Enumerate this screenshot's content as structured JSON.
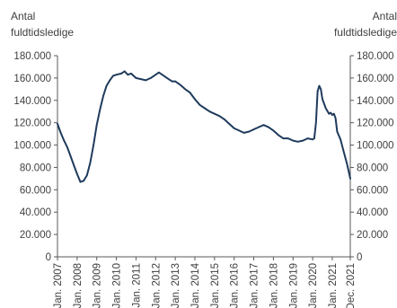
{
  "chart_data": {
    "type": "line",
    "title": "",
    "ylabel_left": [
      "Antal",
      "fuldtidsledige"
    ],
    "ylabel_right": [
      "Antal",
      "fuldtidsledige"
    ],
    "ylim": [
      0,
      180000
    ],
    "y_ticks": [
      {
        "value": 0,
        "label": "0"
      },
      {
        "value": 20000,
        "label": "20.000"
      },
      {
        "value": 40000,
        "label": "40.000"
      },
      {
        "value": 60000,
        "label": "60.000"
      },
      {
        "value": 80000,
        "label": "80.000"
      },
      {
        "value": 100000,
        "label": "100.000"
      },
      {
        "value": 120000,
        "label": "120.000"
      },
      {
        "value": 140000,
        "label": "140.000"
      },
      {
        "value": 160000,
        "label": "160.000"
      },
      {
        "value": 180000,
        "label": "180.000"
      }
    ],
    "x_ticks": [
      {
        "date": "2007-01",
        "label": "Jan. 2007"
      },
      {
        "date": "2008-01",
        "label": "Jan. 2008"
      },
      {
        "date": "2009-01",
        "label": "Jan. 2009"
      },
      {
        "date": "2010-01",
        "label": "Jan. 2010"
      },
      {
        "date": "2011-01",
        "label": "Jan. 2011"
      },
      {
        "date": "2012-01",
        "label": "Jan. 2012"
      },
      {
        "date": "2013-01",
        "label": "Jan. 2013"
      },
      {
        "date": "2014-01",
        "label": "Jan. 2014"
      },
      {
        "date": "2015-01",
        "label": "Jan. 2015"
      },
      {
        "date": "2016-01",
        "label": "Jan. 2016"
      },
      {
        "date": "2017-01",
        "label": "Jan. 2017"
      },
      {
        "date": "2018-01",
        "label": "Jan. 2018"
      },
      {
        "date": "2019-01",
        "label": "Jan. 2019"
      },
      {
        "date": "2020-01",
        "label": "Jan. 2020"
      },
      {
        "date": "2021-01",
        "label": "Jan. 2021"
      },
      {
        "date": "2021-12",
        "label": "Dec. 2021"
      }
    ],
    "series": [
      {
        "color": "#1f3b5c",
        "points": [
          {
            "x": "2007-01",
            "y": 119000
          },
          {
            "x": "2007-03",
            "y": 111000
          },
          {
            "x": "2007-05",
            "y": 104000
          },
          {
            "x": "2007-07",
            "y": 98000
          },
          {
            "x": "2007-09",
            "y": 90000
          },
          {
            "x": "2007-11",
            "y": 82000
          },
          {
            "x": "2008-01",
            "y": 74000
          },
          {
            "x": "2008-03",
            "y": 67000
          },
          {
            "x": "2008-05",
            "y": 68000
          },
          {
            "x": "2008-07",
            "y": 73000
          },
          {
            "x": "2008-09",
            "y": 84000
          },
          {
            "x": "2008-11",
            "y": 100000
          },
          {
            "x": "2009-01",
            "y": 118000
          },
          {
            "x": "2009-03",
            "y": 132000
          },
          {
            "x": "2009-05",
            "y": 144000
          },
          {
            "x": "2009-07",
            "y": 153000
          },
          {
            "x": "2009-09",
            "y": 158000
          },
          {
            "x": "2009-11",
            "y": 162000
          },
          {
            "x": "2010-01",
            "y": 163000
          },
          {
            "x": "2010-04",
            "y": 164000
          },
          {
            "x": "2010-06",
            "y": 166000
          },
          {
            "x": "2010-08",
            "y": 163000
          },
          {
            "x": "2010-10",
            "y": 164000
          },
          {
            "x": "2011-01",
            "y": 160000
          },
          {
            "x": "2011-04",
            "y": 159000
          },
          {
            "x": "2011-07",
            "y": 158000
          },
          {
            "x": "2011-10",
            "y": 160000
          },
          {
            "x": "2012-01",
            "y": 163000
          },
          {
            "x": "2012-03",
            "y": 165000
          },
          {
            "x": "2012-05",
            "y": 163000
          },
          {
            "x": "2012-08",
            "y": 160000
          },
          {
            "x": "2012-11",
            "y": 157000
          },
          {
            "x": "2013-01",
            "y": 157000
          },
          {
            "x": "2013-04",
            "y": 154000
          },
          {
            "x": "2013-07",
            "y": 150000
          },
          {
            "x": "2013-10",
            "y": 147000
          },
          {
            "x": "2014-01",
            "y": 141000
          },
          {
            "x": "2014-04",
            "y": 136000
          },
          {
            "x": "2014-07",
            "y": 133000
          },
          {
            "x": "2014-10",
            "y": 130000
          },
          {
            "x": "2015-01",
            "y": 128000
          },
          {
            "x": "2015-04",
            "y": 126000
          },
          {
            "x": "2015-07",
            "y": 123000
          },
          {
            "x": "2015-10",
            "y": 119000
          },
          {
            "x": "2016-01",
            "y": 115000
          },
          {
            "x": "2016-04",
            "y": 113000
          },
          {
            "x": "2016-07",
            "y": 111000
          },
          {
            "x": "2016-10",
            "y": 112000
          },
          {
            "x": "2017-01",
            "y": 114000
          },
          {
            "x": "2017-04",
            "y": 116000
          },
          {
            "x": "2017-07",
            "y": 118000
          },
          {
            "x": "2017-10",
            "y": 116000
          },
          {
            "x": "2018-01",
            "y": 113000
          },
          {
            "x": "2018-04",
            "y": 109000
          },
          {
            "x": "2018-07",
            "y": 106000
          },
          {
            "x": "2018-10",
            "y": 106000
          },
          {
            "x": "2019-01",
            "y": 104000
          },
          {
            "x": "2019-04",
            "y": 103000
          },
          {
            "x": "2019-07",
            "y": 104000
          },
          {
            "x": "2019-10",
            "y": 106000
          },
          {
            "x": "2020-01",
            "y": 105000
          },
          {
            "x": "2020-02",
            "y": 106000
          },
          {
            "x": "2020-03",
            "y": 120000
          },
          {
            "x": "2020-04",
            "y": 148000
          },
          {
            "x": "2020-05",
            "y": 153000
          },
          {
            "x": "2020-06",
            "y": 150000
          },
          {
            "x": "2020-07",
            "y": 141000
          },
          {
            "x": "2020-09",
            "y": 133000
          },
          {
            "x": "2020-11",
            "y": 128000
          },
          {
            "x": "2020-12",
            "y": 129000
          },
          {
            "x": "2021-01",
            "y": 127000
          },
          {
            "x": "2021-02",
            "y": 128000
          },
          {
            "x": "2021-03",
            "y": 124000
          },
          {
            "x": "2021-04",
            "y": 112000
          },
          {
            "x": "2021-06",
            "y": 105000
          },
          {
            "x": "2021-08",
            "y": 94000
          },
          {
            "x": "2021-10",
            "y": 83000
          },
          {
            "x": "2021-12",
            "y": 70000
          }
        ]
      }
    ]
  }
}
